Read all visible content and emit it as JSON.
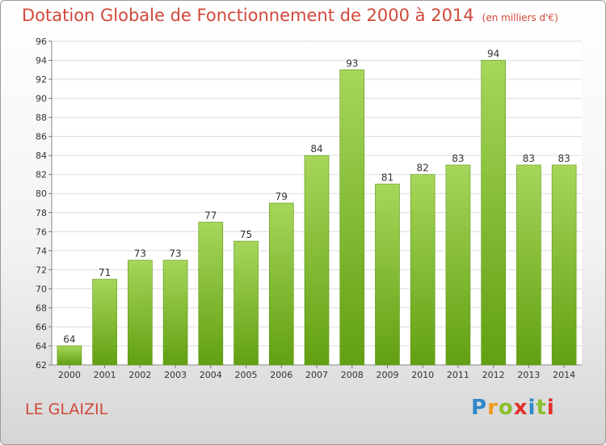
{
  "chart_data": {
    "type": "bar",
    "title": "Dotation Globale de Fonctionnement de 2000 à 2014",
    "subtitle": "(en milliers d'€)",
    "categories": [
      "2000",
      "2001",
      "2002",
      "2003",
      "2004",
      "2005",
      "2006",
      "2007",
      "2008",
      "2009",
      "2010",
      "2011",
      "2012",
      "2013",
      "2014"
    ],
    "values": [
      64,
      71,
      73,
      73,
      77,
      75,
      79,
      84,
      93,
      81,
      82,
      83,
      94,
      83,
      83
    ],
    "ylim": [
      62,
      96
    ],
    "yticks": [
      62,
      64,
      66,
      68,
      70,
      72,
      74,
      76,
      78,
      80,
      82,
      84,
      86,
      88,
      90,
      92,
      94,
      96
    ],
    "xlabel": "",
    "ylabel": "",
    "grid": true
  },
  "footer": {
    "commune": "LE GLAIZIL",
    "logo_letters": [
      "P",
      "r",
      "o",
      "x",
      "i",
      "t",
      "i"
    ],
    "logo_colors": [
      "#2f88c9",
      "#f19a1c",
      "#8bbf2d",
      "#e0302a",
      "#2f88c9",
      "#8bbf2d",
      "#e0302a"
    ]
  },
  "colors": {
    "bar_light": "#a6d65a",
    "bar_dark": "#62a012",
    "title": "#d1483a",
    "grid": "#dcdcdc"
  }
}
